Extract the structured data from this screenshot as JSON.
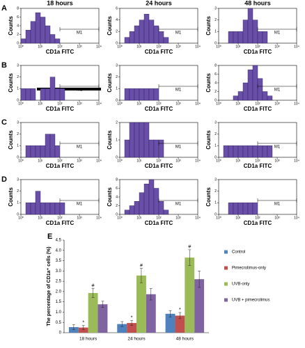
{
  "chart_data": [
    {
      "type": "histogram",
      "panel_label": "A",
      "title": "18 hours",
      "xlabel": "CD1a FITC",
      "ylabel": "Counts",
      "log_x": true,
      "xlim": [
        1,
        10000
      ],
      "xticks": [
        {
          "value": 1,
          "label": "10⁰"
        },
        {
          "value": 10,
          "label": "10¹"
        },
        {
          "value": 100,
          "label": "10²"
        },
        {
          "value": 1000,
          "label": "10³"
        },
        {
          "value": 10000,
          "label": "10⁴"
        }
      ],
      "ylim": [
        0,
        8
      ],
      "yticks": [
        0,
        2,
        4,
        6,
        8
      ],
      "bins": [
        1,
        1.78,
        3.16,
        5.62,
        10,
        17.8,
        31.6,
        56.2,
        100,
        178,
        316,
        562,
        1000,
        1780,
        3160,
        5620,
        10000
      ],
      "counts": [
        1,
        3,
        5,
        7,
        6,
        4,
        2,
        1,
        0,
        0,
        0,
        0,
        0,
        0,
        0,
        0
      ],
      "color": "#6a4fa8",
      "gate": {
        "label": "M1",
        "range": [
          100,
          10000
        ]
      }
    },
    {
      "type": "histogram",
      "title": "24 hours",
      "xlabel": "CD1a FITC",
      "ylabel": "Counts",
      "log_x": true,
      "xlim": [
        1,
        10000
      ],
      "xticks": [
        {
          "value": 1,
          "label": "10⁰"
        },
        {
          "value": 10,
          "label": "10¹"
        },
        {
          "value": 100,
          "label": "10²"
        },
        {
          "value": 1000,
          "label": "10³"
        },
        {
          "value": 10000,
          "label": "10⁴"
        }
      ],
      "ylim": [
        0,
        6
      ],
      "yticks": [
        0,
        2,
        4,
        6
      ],
      "bins": [
        1,
        1.78,
        3.16,
        5.62,
        10,
        17.8,
        31.6,
        56.2,
        100,
        178,
        316,
        562,
        1000,
        1780,
        3160,
        5620,
        10000
      ],
      "counts": [
        0,
        1,
        2,
        3,
        4,
        5,
        4,
        3,
        2,
        1,
        0,
        0,
        0,
        0,
        0,
        0
      ],
      "color": "#6a4fa8",
      "gate": {
        "label": "M1",
        "range": [
          100,
          10000
        ]
      }
    },
    {
      "type": "histogram",
      "title": "48 hours",
      "xlabel": "CD1a FITC",
      "ylabel": "Counts",
      "log_x": true,
      "xlim": [
        1,
        10000
      ],
      "xticks": [
        {
          "value": 1,
          "label": "10⁰"
        },
        {
          "value": 10,
          "label": "10¹"
        },
        {
          "value": 100,
          "label": "10²"
        },
        {
          "value": 1000,
          "label": "10³"
        },
        {
          "value": 10000,
          "label": "10⁴"
        }
      ],
      "ylim": [
        0,
        3
      ],
      "yticks": [
        0,
        1,
        2,
        3
      ],
      "bins": [
        1,
        1.78,
        3.16,
        5.62,
        10,
        17.8,
        31.6,
        56.2,
        100,
        178,
        316,
        562,
        1000,
        1780,
        3160,
        5620,
        10000
      ],
      "counts": [
        0,
        0,
        1,
        1,
        1,
        2,
        3,
        2,
        1,
        1,
        0,
        0,
        0,
        0,
        0,
        0
      ],
      "color": "#6a4fa8",
      "gate": {
        "label": "M1",
        "range": [
          100,
          10000
        ]
      }
    },
    {
      "type": "histogram",
      "panel_label": "B",
      "xlabel": "CD1a FITC",
      "ylabel": "Counts",
      "log_x": true,
      "xlim": [
        1,
        10000
      ],
      "xticks": [
        {
          "value": 1,
          "label": "10⁰"
        },
        {
          "value": 10,
          "label": "10¹"
        },
        {
          "value": 100,
          "label": "10²"
        },
        {
          "value": 1000,
          "label": "10³"
        },
        {
          "value": 10000,
          "label": "10⁴"
        }
      ],
      "ylim": [
        0,
        3
      ],
      "yticks": [
        0,
        1,
        2,
        3
      ],
      "bins": [
        1,
        1.78,
        3.16,
        5.62,
        10,
        17.8,
        31.6,
        56.2,
        100,
        178,
        316,
        562,
        1000,
        1780,
        3160,
        5620,
        10000
      ],
      "counts": [
        1,
        1,
        1,
        0,
        1,
        1,
        2,
        1,
        1,
        0,
        0,
        0,
        0,
        0,
        0,
        0
      ],
      "color": "#6a4fa8",
      "gate": {
        "label": "M1",
        "range": [
          100,
          10000
        ]
      }
    },
    {
      "type": "histogram",
      "xlabel": "CD1a FITC",
      "ylabel": "Counts",
      "log_x": true,
      "xlim": [
        1,
        10000
      ],
      "xticks": [
        {
          "value": 1,
          "label": "10⁰"
        },
        {
          "value": 10,
          "label": "10¹"
        },
        {
          "value": 100,
          "label": "10²"
        },
        {
          "value": 1000,
          "label": "10³"
        },
        {
          "value": 10000,
          "label": "10⁴"
        }
      ],
      "ylim": [
        0,
        3
      ],
      "yticks": [
        0,
        1,
        2,
        3
      ],
      "bins": [
        1,
        1.78,
        3.16,
        5.62,
        10,
        17.8,
        31.6,
        56.2,
        100,
        178,
        316,
        562,
        1000,
        1780,
        3160,
        5620,
        10000
      ],
      "counts": [
        0,
        1,
        1,
        1,
        1,
        1,
        1,
        1,
        0,
        0,
        0,
        0,
        0,
        0,
        0,
        0
      ],
      "color": "#6a4fa8",
      "gate": {
        "label": "M1",
        "range": [
          100,
          10000
        ]
      }
    },
    {
      "type": "histogram",
      "xlabel": "CD1a FITC",
      "ylabel": "Counts",
      "log_x": true,
      "xlim": [
        1,
        10000
      ],
      "xticks": [
        {
          "value": 1,
          "label": "10⁰"
        },
        {
          "value": 10,
          "label": "10¹"
        },
        {
          "value": 100,
          "label": "10²"
        },
        {
          "value": 1000,
          "label": "10³"
        },
        {
          "value": 10000,
          "label": "10⁴"
        }
      ],
      "ylim": [
        0,
        8
      ],
      "yticks": [
        0,
        2,
        4,
        6,
        8
      ],
      "bins": [
        1,
        1.78,
        3.16,
        5.62,
        10,
        17.8,
        31.6,
        56.2,
        100,
        178,
        316,
        562,
        1000,
        1780,
        3160,
        5620,
        10000
      ],
      "counts": [
        0,
        0,
        0,
        1,
        2,
        4,
        7,
        8,
        5,
        2,
        1,
        0,
        0,
        0,
        0,
        0
      ],
      "color": "#6a4fa8",
      "gate": {
        "label": "M1",
        "range": [
          100,
          10000
        ]
      }
    },
    {
      "type": "histogram",
      "panel_label": "C",
      "xlabel": "CD1a FITC",
      "ylabel": "Counts",
      "log_x": true,
      "xlim": [
        1,
        10000
      ],
      "xticks": [
        {
          "value": 1,
          "label": "10⁰"
        },
        {
          "value": 10,
          "label": "10¹"
        },
        {
          "value": 100,
          "label": "10²"
        },
        {
          "value": 1000,
          "label": "10³"
        },
        {
          "value": 10000,
          "label": "10⁴"
        }
      ],
      "ylim": [
        0,
        3
      ],
      "yticks": [
        0,
        1,
        2,
        3
      ],
      "bins": [
        1,
        1.78,
        3.16,
        5.62,
        10,
        17.8,
        31.6,
        56.2,
        100,
        178,
        316,
        562,
        1000,
        1780,
        3160,
        5620,
        10000
      ],
      "counts": [
        0,
        1,
        1,
        1,
        1,
        2,
        2,
        1,
        0,
        0,
        0,
        0,
        0,
        0,
        0,
        0
      ],
      "color": "#6a4fa8",
      "gate": {
        "label": "M1",
        "range": [
          100,
          10000
        ]
      }
    },
    {
      "type": "histogram",
      "xlabel": "CD1a FITC",
      "ylabel": "Counts",
      "log_x": true,
      "xlim": [
        1,
        10000
      ],
      "xticks": [
        {
          "value": 1,
          "label": "10⁰"
        },
        {
          "value": 10,
          "label": "10¹"
        },
        {
          "value": 100,
          "label": "10²"
        },
        {
          "value": 1000,
          "label": "10³"
        },
        {
          "value": 10000,
          "label": "10⁴"
        }
      ],
      "ylim": [
        0,
        2
      ],
      "yticks": [
        0,
        1,
        2
      ],
      "bins": [
        1,
        1.78,
        3.16,
        5.62,
        10,
        17.8,
        31.6,
        56.2,
        100,
        178,
        316,
        562,
        1000,
        1780,
        3160,
        5620,
        10000
      ],
      "counts": [
        0,
        1,
        2,
        2,
        2,
        2,
        1,
        1,
        1,
        0,
        0,
        0,
        0,
        0,
        0,
        0
      ],
      "color": "#6a4fa8",
      "gate": {
        "label": "M1",
        "range": [
          100,
          10000
        ]
      }
    },
    {
      "type": "histogram",
      "xlabel": "CD1a FITC",
      "ylabel": "Counts",
      "log_x": true,
      "xlim": [
        1,
        10000
      ],
      "xticks": [
        {
          "value": 1,
          "label": "10⁰"
        },
        {
          "value": 10,
          "label": "10¹"
        },
        {
          "value": 100,
          "label": "10²"
        },
        {
          "value": 1000,
          "label": "10³"
        },
        {
          "value": 10000,
          "label": "10⁴"
        }
      ],
      "ylim": [
        0,
        3
      ],
      "yticks": [
        0,
        1,
        2,
        3
      ],
      "bins": [
        1,
        1.78,
        3.16,
        5.62,
        10,
        17.8,
        31.6,
        56.2,
        100,
        178,
        316,
        562,
        1000,
        1780,
        3160,
        5620,
        10000
      ],
      "counts": [
        0,
        1,
        1,
        1,
        1,
        1,
        1,
        1,
        1,
        1,
        1,
        0,
        0,
        0,
        0,
        0
      ],
      "color": "#6a4fa8",
      "gate": {
        "label": "M1",
        "range": [
          100,
          10000
        ]
      }
    },
    {
      "type": "histogram",
      "panel_label": "D",
      "xlabel": "CD1a FITC",
      "ylabel": "Counts",
      "log_x": true,
      "xlim": [
        1,
        10000
      ],
      "xticks": [
        {
          "value": 1,
          "label": "10⁰"
        },
        {
          "value": 10,
          "label": "10¹"
        },
        {
          "value": 100,
          "label": "10²"
        },
        {
          "value": 1000,
          "label": "10³"
        },
        {
          "value": 10000,
          "label": "10⁴"
        }
      ],
      "ylim": [
        0,
        3
      ],
      "yticks": [
        0,
        1,
        2,
        3
      ],
      "bins": [
        1,
        1.78,
        3.16,
        5.62,
        10,
        17.8,
        31.6,
        56.2,
        100,
        178,
        316,
        562,
        1000,
        1780,
        3160,
        5620,
        10000
      ],
      "counts": [
        0,
        1,
        1,
        2,
        1,
        1,
        1,
        1,
        1,
        0,
        0,
        0,
        0,
        0,
        0,
        0
      ],
      "color": "#6a4fa8",
      "gate": {
        "label": "M1",
        "range": [
          100,
          10000
        ]
      }
    },
    {
      "type": "histogram",
      "xlabel": "CD1a FITC",
      "ylabel": "Counts",
      "log_x": true,
      "xlim": [
        1,
        10000
      ],
      "xticks": [
        {
          "value": 1,
          "label": "10⁰"
        },
        {
          "value": 10,
          "label": "10¹"
        },
        {
          "value": 100,
          "label": "10²"
        },
        {
          "value": 1000,
          "label": "10³"
        },
        {
          "value": 10000,
          "label": "10⁴"
        }
      ],
      "ylim": [
        0,
        8
      ],
      "yticks": [
        0,
        2,
        4,
        6,
        8
      ],
      "bins": [
        1,
        1.78,
        3.16,
        5.62,
        10,
        17.8,
        31.6,
        56.2,
        100,
        178,
        316,
        562,
        1000,
        1780,
        3160,
        5620,
        10000
      ],
      "counts": [
        0,
        1,
        2,
        3,
        5,
        7,
        8,
        6,
        3,
        1,
        0,
        0,
        0,
        0,
        0,
        0
      ],
      "color": "#6a4fa8",
      "gate": {
        "label": "M1",
        "range": [
          100,
          10000
        ]
      }
    },
    {
      "type": "histogram",
      "xlabel": "CD1a FITC",
      "ylabel": "Counts",
      "log_x": true,
      "xlim": [
        1,
        10000
      ],
      "xticks": [
        {
          "value": 1,
          "label": "10⁰"
        },
        {
          "value": 10,
          "label": "10¹"
        },
        {
          "value": 100,
          "label": "10²"
        },
        {
          "value": 1000,
          "label": "10³"
        },
        {
          "value": 10000,
          "label": "10⁴"
        }
      ],
      "ylim": [
        0,
        3
      ],
      "yticks": [
        0,
        1,
        2,
        3
      ],
      "bins": [
        1,
        1.78,
        3.16,
        5.62,
        10,
        17.8,
        31.6,
        56.2,
        100,
        178,
        316,
        562,
        1000,
        1780,
        3160,
        5620,
        10000
      ],
      "counts": [
        0,
        0,
        1,
        1,
        1,
        1,
        1,
        1,
        0,
        0,
        0,
        0,
        0,
        0,
        0,
        0
      ],
      "color": "#6a4fa8",
      "gate": {
        "label": "M1",
        "range": [
          100,
          10000
        ]
      }
    },
    {
      "type": "bar",
      "panel_label": "E",
      "ylabel": "The percentage of CD1a⁺ cells (%)",
      "categories": [
        "18 hours",
        "24 hours",
        "48 hours"
      ],
      "ylim": [
        0,
        4.5
      ],
      "yticks": [
        0,
        0.5,
        {
          "value": 1,
          "label": "1.0"
        },
        1.5,
        {
          "value": 2,
          "label": "2.0"
        },
        2.5,
        {
          "value": 3,
          "label": "3.0"
        },
        3.5,
        {
          "value": 4,
          "label": "4.0"
        },
        4.5
      ],
      "series": [
        {
          "name": "Control",
          "color": "#4f81bd",
          "values": [
            0.27,
            0.42,
            0.92
          ],
          "errors": [
            0.12,
            0.12,
            0.15
          ]
        },
        {
          "name": "Pimecrolimus-only",
          "color": "#c0504d",
          "values": [
            0.25,
            0.47,
            0.83
          ],
          "errors": [
            0.1,
            0.12,
            0.15
          ],
          "markers": [
            "*",
            "*",
            "*"
          ]
        },
        {
          "name": "UVB-only",
          "color": "#9bbb59",
          "values": [
            1.93,
            2.78,
            3.65
          ],
          "errors": [
            0.22,
            0.35,
            0.38
          ],
          "markers": [
            "#",
            "#",
            "#"
          ]
        },
        {
          "name": "UVB + pimecrolimus",
          "color": "#8064a2",
          "values": [
            1.38,
            1.87,
            2.6
          ],
          "errors": [
            0.15,
            0.28,
            0.4
          ]
        }
      ]
    }
  ]
}
